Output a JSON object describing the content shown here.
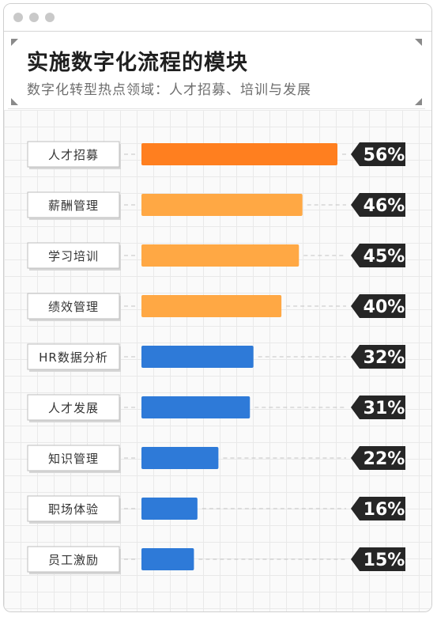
{
  "header": {
    "title": "实施数字化流程的模块",
    "subtitle": "数字化转型热点领域：人才招募、培训与发展"
  },
  "colors": {
    "top": "#ff7f1f",
    "high": "#ffa844",
    "rest": "#2e7ad8",
    "badge": "#262626",
    "grid": "#e9e9e9"
  },
  "chart_data": {
    "type": "bar",
    "orientation": "horizontal",
    "categories": [
      "人才招募",
      "薪酬管理",
      "学习培训",
      "绩效管理",
      "HR数据分析",
      "人才发展",
      "知识管理",
      "职场体验",
      "员工激励"
    ],
    "values": [
      56,
      46,
      45,
      40,
      32,
      31,
      22,
      16,
      15
    ],
    "value_labels": [
      "56%",
      "46%",
      "45%",
      "40%",
      "32%",
      "31%",
      "22%",
      "16%",
      "15%"
    ],
    "unit": "%",
    "xlim": [
      0,
      56
    ],
    "grid": true
  }
}
